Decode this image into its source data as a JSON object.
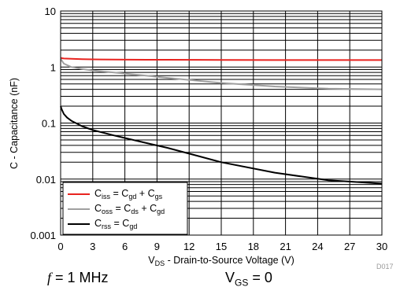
{
  "chart_data": {
    "type": "line",
    "x_scale": "linear",
    "y_scale": "log",
    "xlim": [
      0,
      30
    ],
    "ylim": [
      0.001,
      10
    ],
    "x_ticks": [
      "0",
      "3",
      "6",
      "9",
      "12",
      "15",
      "18",
      "21",
      "24",
      "27",
      "30"
    ],
    "y_ticks": [
      "0.001",
      "0.01",
      "0.1",
      "1",
      "10"
    ],
    "xlabel": {
      "prefix": "V",
      "sub": "DS",
      "suffix": " - Drain-to-Source Voltage (V)"
    },
    "ylabel": "C - Capacitance (nF)",
    "grid": true,
    "legend_position": "bottom-left",
    "series": [
      {
        "id": "ciss",
        "label": {
          "c": "C",
          "c_sub": "iss",
          "eq": " = C",
          "t1_sub": "gd",
          "plus": " + C",
          "t2_sub": "gs"
        },
        "color": "#e8231f",
        "x": [
          0,
          0.3,
          1,
          2,
          3,
          5,
          8,
          10,
          15,
          20,
          25,
          30
        ],
        "y": [
          1.45,
          1.42,
          1.4,
          1.38,
          1.37,
          1.36,
          1.35,
          1.35,
          1.34,
          1.33,
          1.33,
          1.33
        ]
      },
      {
        "id": "coss",
        "label": {
          "c": "C",
          "c_sub": "oss",
          "eq": " = C",
          "t1_sub": "ds",
          "plus": " + C",
          "t2_sub": "gd"
        },
        "color": "#a0a0a0",
        "x": [
          0,
          0.3,
          1,
          2,
          3,
          5,
          8,
          10,
          15,
          20,
          25,
          30
        ],
        "y": [
          1.4,
          1.15,
          1.0,
          0.92,
          0.87,
          0.8,
          0.7,
          0.64,
          0.52,
          0.45,
          0.41,
          0.4
        ]
      },
      {
        "id": "crss",
        "label": {
          "c": "C",
          "c_sub": "rss",
          "eq": " = C",
          "t1_sub": "gd"
        },
        "color": "#000000",
        "x": [
          0,
          0.1,
          0.3,
          0.6,
          1,
          2,
          3,
          5,
          8,
          10,
          15,
          20,
          25,
          30
        ],
        "y": [
          0.2,
          0.175,
          0.145,
          0.125,
          0.11,
          0.088,
          0.075,
          0.06,
          0.044,
          0.036,
          0.02,
          0.013,
          0.0095,
          0.0083
        ]
      }
    ]
  },
  "conditions": {
    "left_symbol": "f",
    "left_text": " = 1 MHz",
    "right_prefix": "V",
    "right_sub": "GS",
    "right_text": " = 0"
  },
  "figure_id": "D017"
}
